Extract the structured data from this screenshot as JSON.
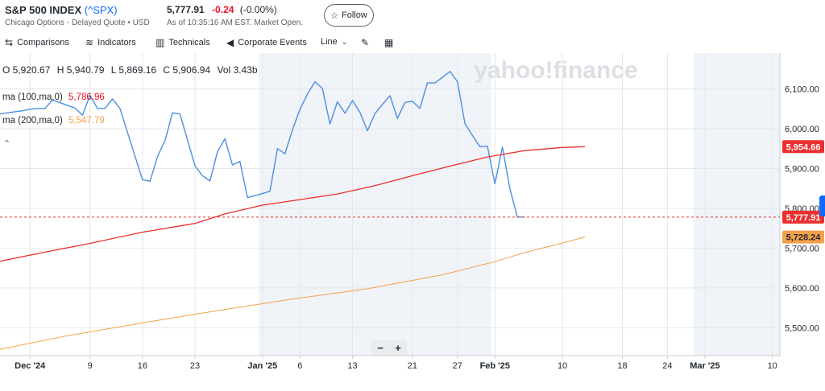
{
  "header": {
    "title": "S&P 500 INDEX",
    "symbol": "(^SPX)",
    "subtitle": "Chicago Options - Delayed Quote • USD",
    "price": "5,777.91",
    "change": "-0.24",
    "change_pct": "(-0.00%)",
    "as_of": "As of 10:35:16 AM EST. Market Open.",
    "follow_label": "Follow"
  },
  "toolbar": {
    "comparisons": "Comparisons",
    "indicators": "Indicators",
    "technicals": "Technicals",
    "corporate_events": "Corporate Events",
    "line": "Line"
  },
  "ohlc": {
    "o": "O 5,920.67",
    "h": "H 5,940.79",
    "l": "L 5,869.16",
    "c": "C 5,906.94",
    "vol": "Vol 3.43b"
  },
  "ma100": {
    "label": "ma (100,ma,0)",
    "value": "5,786.96"
  },
  "ma200": {
    "label": "ma (200,ma,0)",
    "value": "5,547.79"
  },
  "watermark": "yahoo!finance",
  "zoom": {
    "minus": "−",
    "plus": "+"
  },
  "colors": {
    "price": "#4a90e2",
    "ma100": "#eb2f2f",
    "ma200": "#f5a04a",
    "shade": "#f0f3f7"
  },
  "chart_data": {
    "type": "line",
    "title": "S&P 500 INDEX (^SPX)",
    "ylim": [
      5430,
      6190
    ],
    "y_ticks": [
      5500,
      5600,
      5700,
      5800,
      5900,
      6000,
      6100
    ],
    "y_tick_labels": [
      "5,500.00",
      "5,600.00",
      "5,700.00",
      "5,800.00",
      "5,900.00",
      "6,000.00",
      "6,100.00"
    ],
    "x_ticks": [
      {
        "label": "Dec '24",
        "day": 0,
        "bold": true
      },
      {
        "label": "9",
        "day": 8
      },
      {
        "label": "16",
        "day": 15
      },
      {
        "label": "23",
        "day": 22
      },
      {
        "label": "Jan '25",
        "day": 31,
        "bold": true
      },
      {
        "label": "6",
        "day": 36
      },
      {
        "label": "13",
        "day": 43
      },
      {
        "label": "21",
        "day": 51
      },
      {
        "label": "27",
        "day": 57
      },
      {
        "label": "Feb '25",
        "day": 62,
        "bold": true
      },
      {
        "label": "10",
        "day": 71
      },
      {
        "label": "18",
        "day": 79
      },
      {
        "label": "24",
        "day": 85
      },
      {
        "label": "Mar '25",
        "day": 90,
        "bold": true
      },
      {
        "label": "10",
        "day": 99
      }
    ],
    "x_range_days": [
      -4,
      100
    ],
    "shaded_ranges_days": [
      [
        30.5,
        61.5
      ],
      [
        88.5,
        100
      ]
    ],
    "series": [
      {
        "name": "S&P 500 INDEX",
        "points": [
          [
            -4,
            6037
          ],
          [
            -3,
            6040
          ],
          [
            -1,
            6045
          ],
          [
            0,
            6049
          ],
          [
            1,
            6051
          ],
          [
            2,
            6051
          ],
          [
            3,
            6072
          ],
          [
            6,
            6052
          ],
          [
            7,
            6034
          ],
          [
            8,
            6084
          ],
          [
            9,
            6051
          ],
          [
            10,
            6051
          ],
          [
            11,
            6075
          ],
          [
            12,
            6051
          ],
          [
            15,
            5872
          ],
          [
            16,
            5868
          ],
          [
            17,
            5930
          ],
          [
            18,
            5970
          ],
          [
            19,
            6040
          ],
          [
            20,
            6037
          ],
          [
            22,
            5907
          ],
          [
            23,
            5882
          ],
          [
            24,
            5869
          ],
          [
            25,
            5942
          ],
          [
            26,
            5975
          ],
          [
            27,
            5909
          ],
          [
            28,
            5918
          ],
          [
            29,
            5827
          ],
          [
            31,
            5837
          ],
          [
            32,
            5843
          ],
          [
            33,
            5950
          ],
          [
            34,
            5937
          ],
          [
            35,
            5997
          ],
          [
            36,
            6049
          ],
          [
            37,
            6087
          ],
          [
            38,
            6118
          ],
          [
            39,
            6101
          ],
          [
            40,
            6012
          ],
          [
            41,
            6068
          ],
          [
            42,
            6039
          ],
          [
            43,
            6071
          ],
          [
            44,
            6041
          ],
          [
            45,
            5995
          ],
          [
            46,
            6038
          ],
          [
            47,
            6061
          ],
          [
            48,
            6083
          ],
          [
            49,
            6026
          ],
          [
            50,
            6066
          ],
          [
            51,
            6069
          ],
          [
            52,
            6051
          ],
          [
            53,
            6115
          ],
          [
            54,
            6115
          ],
          [
            55,
            6129
          ],
          [
            56,
            6144
          ],
          [
            57,
            6118
          ],
          [
            58,
            6013
          ],
          [
            59,
            5983
          ],
          [
            60,
            5955
          ],
          [
            61,
            5956
          ],
          [
            62,
            5862
          ],
          [
            63,
            5954
          ],
          [
            64,
            5849
          ],
          [
            65,
            5778
          ],
          [
            66,
            5778
          ]
        ]
      },
      {
        "name": "ma (100,ma,0)",
        "points": [
          [
            -4,
            5667
          ],
          [
            2,
            5690
          ],
          [
            8,
            5712
          ],
          [
            15,
            5740
          ],
          [
            22,
            5762
          ],
          [
            26,
            5786
          ],
          [
            31,
            5808
          ],
          [
            36,
            5822
          ],
          [
            41,
            5836
          ],
          [
            46,
            5857
          ],
          [
            51,
            5882
          ],
          [
            56,
            5906
          ],
          [
            61,
            5929
          ],
          [
            66,
            5945
          ],
          [
            71,
            5953
          ],
          [
            74,
            5955
          ]
        ]
      },
      {
        "name": "ma (200,ma,0)",
        "points": [
          [
            -4,
            5446
          ],
          [
            5,
            5480
          ],
          [
            15,
            5512
          ],
          [
            25,
            5543
          ],
          [
            35,
            5572
          ],
          [
            45,
            5598
          ],
          [
            55,
            5633
          ],
          [
            62,
            5666
          ],
          [
            66,
            5689
          ],
          [
            70,
            5708
          ],
          [
            74,
            5728
          ]
        ]
      }
    ],
    "price_label": "5,777.91",
    "ma100_label": "5,954.66",
    "ma200_label": "5,728.24"
  }
}
